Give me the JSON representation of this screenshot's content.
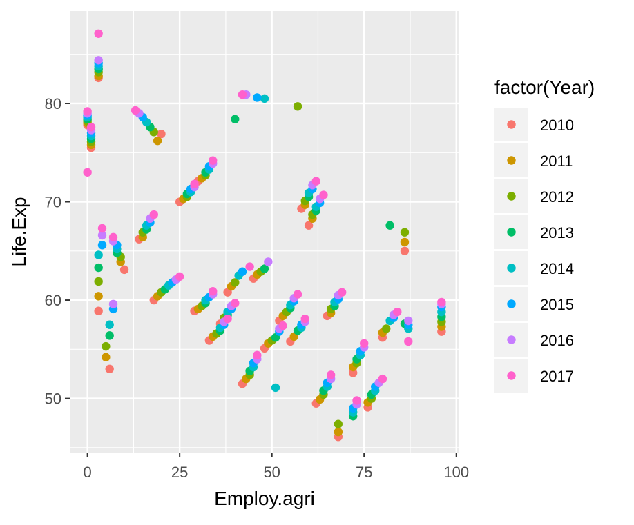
{
  "chart_data": {
    "type": "scatter",
    "title": "",
    "xlabel": "Employ.agri",
    "ylabel": "Life.Exp",
    "xlim": [
      -4.8,
      100.8
    ],
    "ylim": [
      44.5,
      89.4
    ],
    "x_ticks": [
      0,
      25,
      50,
      75,
      100
    ],
    "y_ticks": [
      50,
      60,
      70,
      80
    ],
    "grid": true,
    "legend": {
      "title": "factor(Year)",
      "position": "right"
    },
    "series": [
      {
        "name": "2010",
        "color": "#F8766D",
        "points": [
          [
            0,
            77.8
          ],
          [
            1,
            75.5
          ],
          [
            3,
            82.6
          ],
          [
            6,
            53.0
          ],
          [
            10,
            63.1
          ],
          [
            20,
            76.9
          ],
          [
            25,
            70.0
          ],
          [
            29,
            58.9
          ],
          [
            33,
            55.9
          ],
          [
            38,
            60.8
          ],
          [
            45,
            62.2
          ],
          [
            48,
            55.1
          ],
          [
            52,
            57.9
          ],
          [
            55,
            55.8
          ],
          [
            60,
            67.6
          ],
          [
            62,
            49.5
          ],
          [
            65,
            58.4
          ],
          [
            68,
            46.1
          ],
          [
            72,
            52.6
          ],
          [
            76,
            49.1
          ],
          [
            80,
            56.2
          ],
          [
            86,
            65.0
          ],
          [
            96,
            56.8
          ],
          [
            14,
            66.2
          ],
          [
            30,
            72.1
          ],
          [
            42,
            51.5
          ],
          [
            58,
            69.3
          ],
          [
            3,
            58.9
          ],
          [
            18,
            60.0
          ],
          [
            36,
            57.6
          ]
        ]
      },
      {
        "name": "2011",
        "color": "#CD9600",
        "points": [
          [
            0,
            78.0
          ],
          [
            1,
            75.8
          ],
          [
            3,
            82.8
          ],
          [
            5,
            54.2
          ],
          [
            9,
            63.9
          ],
          [
            19,
            76.2
          ],
          [
            26,
            70.3
          ],
          [
            30,
            59.1
          ],
          [
            34,
            56.3
          ],
          [
            39,
            61.4
          ],
          [
            46,
            62.6
          ],
          [
            49,
            55.6
          ],
          [
            53,
            58.4
          ],
          [
            56,
            56.3
          ],
          [
            61,
            68.3
          ],
          [
            63,
            49.9
          ],
          [
            66,
            58.7
          ],
          [
            68,
            46.6
          ],
          [
            72,
            53.2
          ],
          [
            76,
            49.6
          ],
          [
            80,
            56.7
          ],
          [
            86,
            65.9
          ],
          [
            96,
            57.3
          ],
          [
            15,
            66.4
          ],
          [
            31,
            72.4
          ],
          [
            43,
            52.0
          ],
          [
            59,
            69.7
          ],
          [
            3,
            60.4
          ],
          [
            19,
            60.4
          ],
          [
            37,
            57.9
          ]
        ]
      },
      {
        "name": "2012",
        "color": "#7CAE00",
        "points": [
          [
            0,
            78.2
          ],
          [
            1,
            76.1
          ],
          [
            3,
            83.2
          ],
          [
            5,
            55.3
          ],
          [
            9,
            64.4
          ],
          [
            18,
            77.1
          ],
          [
            27,
            70.5
          ],
          [
            31,
            59.4
          ],
          [
            35,
            56.6
          ],
          [
            40,
            61.8
          ],
          [
            47,
            62.9
          ],
          [
            50,
            55.9
          ],
          [
            54,
            58.8
          ],
          [
            57,
            79.7
          ],
          [
            61,
            68.7
          ],
          [
            64,
            50.4
          ],
          [
            66,
            59.1
          ],
          [
            68,
            47.4
          ],
          [
            73,
            53.6
          ],
          [
            77,
            50.0
          ],
          [
            81,
            57.1
          ],
          [
            86,
            66.9
          ],
          [
            96,
            57.8
          ],
          [
            15,
            66.9
          ],
          [
            32,
            72.7
          ],
          [
            44,
            52.4
          ],
          [
            59,
            70.1
          ],
          [
            3,
            61.9
          ],
          [
            20,
            60.8
          ],
          [
            37,
            58.2
          ]
        ]
      },
      {
        "name": "2013",
        "color": "#00BE67",
        "points": [
          [
            0,
            78.4
          ],
          [
            1,
            76.4
          ],
          [
            3,
            83.5
          ],
          [
            6,
            56.4
          ],
          [
            8,
            64.8
          ],
          [
            17,
            77.6
          ],
          [
            27,
            70.8
          ],
          [
            32,
            59.7
          ],
          [
            36,
            56.9
          ],
          [
            40,
            78.4
          ],
          [
            48,
            63.2
          ],
          [
            51,
            56.2
          ],
          [
            55,
            59.2
          ],
          [
            57,
            56.9
          ],
          [
            62,
            69.1
          ],
          [
            64,
            50.8
          ],
          [
            67,
            59.4
          ],
          [
            72,
            48.2
          ],
          [
            73,
            54.0
          ],
          [
            77,
            50.4
          ],
          [
            82,
            67.6
          ],
          [
            86,
            57.6
          ],
          [
            96,
            58.3
          ],
          [
            16,
            67.2
          ],
          [
            32,
            73.0
          ],
          [
            44,
            52.8
          ],
          [
            60,
            70.5
          ],
          [
            3,
            63.3
          ],
          [
            21,
            61.1
          ],
          [
            38,
            58.5
          ]
        ]
      },
      {
        "name": "2014",
        "color": "#00BFC4",
        "points": [
          [
            0,
            78.6
          ],
          [
            1,
            76.7
          ],
          [
            3,
            83.8
          ],
          [
            6,
            57.5
          ],
          [
            8,
            65.2
          ],
          [
            16,
            78.1
          ],
          [
            28,
            71.0
          ],
          [
            32,
            60.0
          ],
          [
            36,
            57.2
          ],
          [
            41,
            62.5
          ],
          [
            48,
            80.5
          ],
          [
            51,
            51.1
          ],
          [
            55,
            59.5
          ],
          [
            58,
            57.2
          ],
          [
            62,
            69.5
          ],
          [
            65,
            51.2
          ],
          [
            67,
            59.8
          ],
          [
            72,
            48.6
          ],
          [
            74,
            54.4
          ],
          [
            78,
            50.8
          ],
          [
            82,
            57.9
          ],
          [
            87,
            57.1
          ],
          [
            96,
            58.8
          ],
          [
            16,
            67.6
          ],
          [
            33,
            73.3
          ],
          [
            45,
            53.2
          ],
          [
            60,
            70.9
          ],
          [
            3,
            64.6
          ],
          [
            22,
            61.5
          ],
          [
            38,
            58.8
          ]
        ]
      },
      {
        "name": "2015",
        "color": "#00A9FF",
        "points": [
          [
            0,
            78.8
          ],
          [
            1,
            77.0
          ],
          [
            3,
            84.1
          ],
          [
            4,
            65.6
          ],
          [
            8,
            65.6
          ],
          [
            15,
            78.6
          ],
          [
            28,
            71.3
          ],
          [
            33,
            60.3
          ],
          [
            37,
            57.5
          ],
          [
            42,
            62.9
          ],
          [
            46,
            80.6
          ],
          [
            52,
            56.8
          ],
          [
            56,
            59.9
          ],
          [
            58,
            57.5
          ],
          [
            63,
            69.9
          ],
          [
            65,
            51.6
          ],
          [
            68,
            60.1
          ],
          [
            72,
            49.0
          ],
          [
            74,
            54.8
          ],
          [
            78,
            51.2
          ],
          [
            83,
            58.2
          ],
          [
            87,
            57.5
          ],
          [
            96,
            59.3
          ],
          [
            17,
            67.9
          ],
          [
            33,
            73.6
          ],
          [
            45,
            53.6
          ],
          [
            61,
            71.3
          ],
          [
            7,
            59.1
          ],
          [
            23,
            61.8
          ],
          [
            39,
            59.1
          ]
        ]
      },
      {
        "name": "2016",
        "color": "#C77CFF",
        "points": [
          [
            0,
            79.0
          ],
          [
            1,
            77.3
          ],
          [
            3,
            84.4
          ],
          [
            4,
            66.6
          ],
          [
            7,
            66.0
          ],
          [
            14,
            79.0
          ],
          [
            29,
            71.5
          ],
          [
            34,
            60.6
          ],
          [
            37,
            57.8
          ],
          [
            43,
            80.9
          ],
          [
            49,
            63.9
          ],
          [
            52,
            57.1
          ],
          [
            56,
            60.2
          ],
          [
            59,
            57.8
          ],
          [
            63,
            70.3
          ],
          [
            66,
            52.0
          ],
          [
            68,
            60.5
          ],
          [
            73,
            49.4
          ],
          [
            75,
            55.2
          ],
          [
            79,
            51.6
          ],
          [
            83,
            58.5
          ],
          [
            87,
            57.9
          ],
          [
            96,
            59.6
          ],
          [
            17,
            68.3
          ],
          [
            34,
            73.9
          ],
          [
            46,
            54.0
          ],
          [
            61,
            71.7
          ],
          [
            7,
            59.6
          ],
          [
            24,
            62.1
          ],
          [
            39,
            59.4
          ]
        ]
      },
      {
        "name": "2017",
        "color": "#FF61CC",
        "points": [
          [
            0,
            79.2
          ],
          [
            1,
            77.6
          ],
          [
            3,
            87.1
          ],
          [
            4,
            67.3
          ],
          [
            7,
            66.4
          ],
          [
            13,
            79.3
          ],
          [
            29,
            71.8
          ],
          [
            34,
            60.9
          ],
          [
            38,
            58.1
          ],
          [
            44,
            63.4
          ],
          [
            42,
            80.9
          ],
          [
            53,
            57.4
          ],
          [
            57,
            60.6
          ],
          [
            59,
            58.1
          ],
          [
            64,
            70.7
          ],
          [
            66,
            52.4
          ],
          [
            69,
            60.8
          ],
          [
            73,
            49.8
          ],
          [
            75,
            55.6
          ],
          [
            80,
            52.0
          ],
          [
            84,
            58.8
          ],
          [
            87,
            55.8
          ],
          [
            96,
            59.8
          ],
          [
            18,
            68.7
          ],
          [
            34,
            74.2
          ],
          [
            46,
            54.4
          ],
          [
            62,
            72.1
          ],
          [
            0,
            73.0
          ],
          [
            25,
            62.4
          ],
          [
            40,
            59.7
          ]
        ]
      }
    ]
  }
}
